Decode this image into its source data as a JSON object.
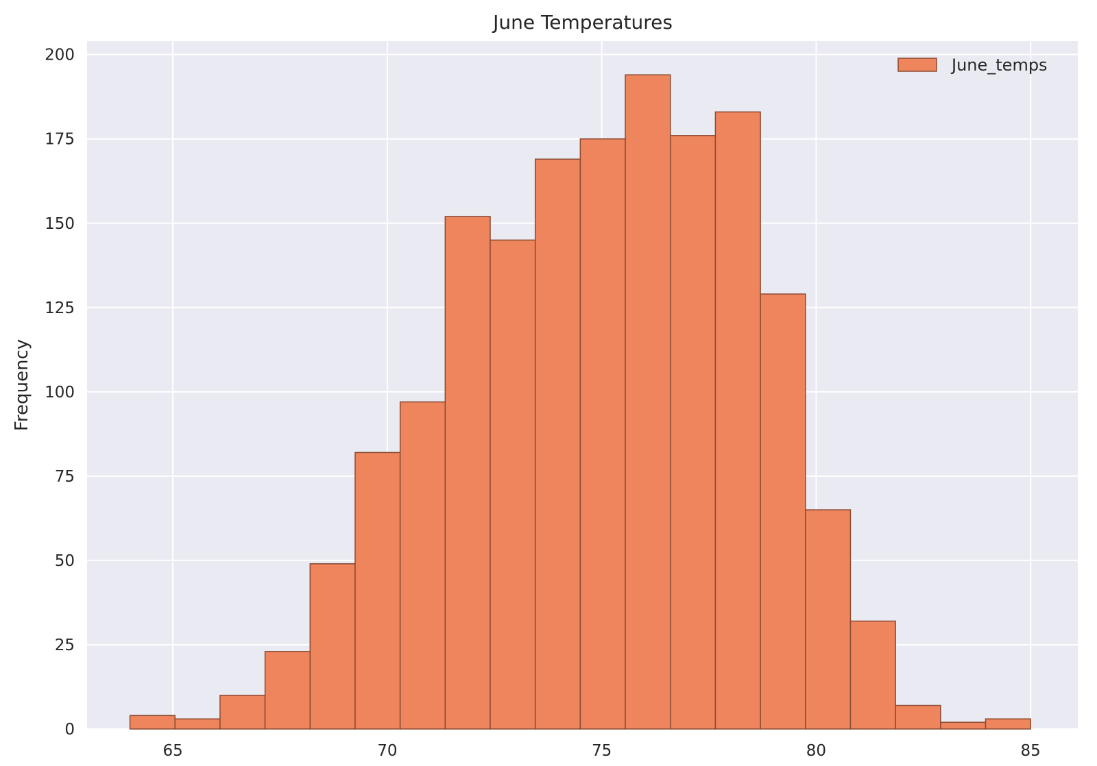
{
  "chart_data": {
    "type": "bar",
    "title": "June Temperatures",
    "xlabel": "",
    "ylabel": "Frequency",
    "xlim": [
      63,
      86.1
    ],
    "ylim": [
      0,
      204
    ],
    "x_ticks": [
      "65",
      "70",
      "75",
      "80",
      "85"
    ],
    "y_ticks": [
      "0",
      "25",
      "50",
      "75",
      "100",
      "125",
      "150",
      "175",
      "200"
    ],
    "bin_range": [
      64,
      85
    ],
    "bins": 20,
    "series": [
      {
        "name": "June_temps",
        "color": "#ee855c",
        "edge_color": "#8a4a33",
        "values": [
          4,
          3,
          10,
          23,
          49,
          82,
          97,
          152,
          145,
          169,
          175,
          194,
          176,
          183,
          129,
          65,
          32,
          7,
          2,
          3
        ]
      }
    ],
    "grid": true,
    "background_color": "#eaeaf2",
    "legend": "top-right"
  }
}
